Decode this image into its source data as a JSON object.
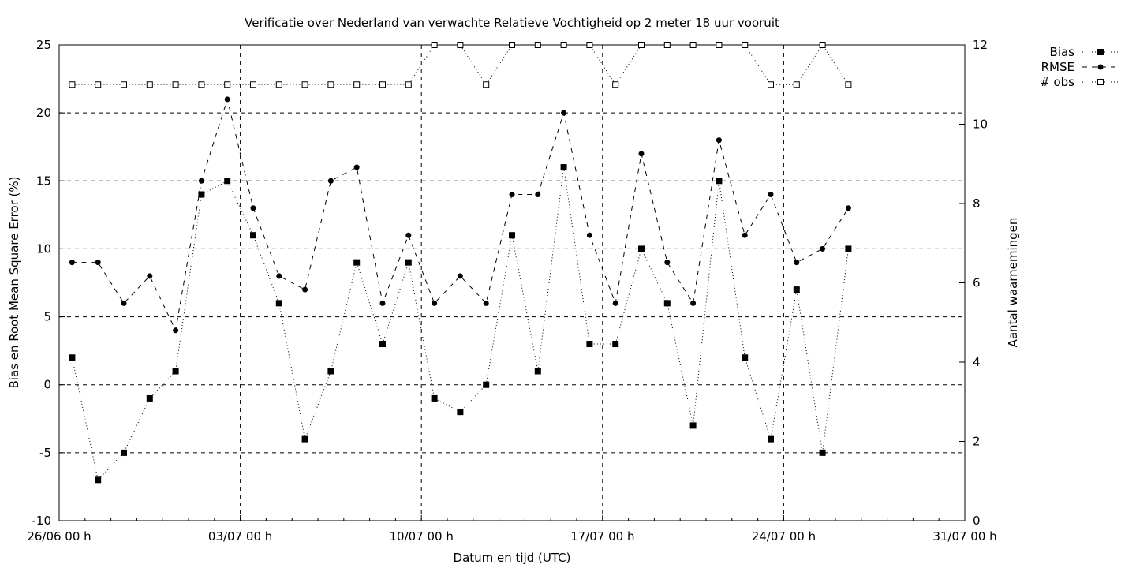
{
  "chart_data": {
    "type": "line",
    "title": "Verificatie over Nederland van verwachte Relatieve Vochtigheid op 2 meter 18 uur vooruit",
    "xlabel": "Datum en tijd (UTC)",
    "ylabel": "Bias en Root Mean Square Error (%)",
    "y2label": "Aantal waarnemingen",
    "x_ticks": [
      "26/06 00 h",
      "03/07 00 h",
      "10/07 00 h",
      "17/07 00 h",
      "24/07 00 h",
      "31/07 00 h"
    ],
    "ylim": [
      -10,
      25
    ],
    "yticks": [
      -10,
      -5,
      0,
      5,
      10,
      15,
      20,
      25
    ],
    "y2lim": [
      0,
      12
    ],
    "y2ticks": [
      0,
      2,
      4,
      6,
      8,
      10,
      12
    ],
    "grid": true,
    "legend_position": "top-right outside",
    "x_days": [
      0.5,
      1.5,
      2.5,
      3.5,
      4.5,
      5.5,
      6.5,
      7.5,
      8.5,
      9.5,
      10.5,
      11.5,
      12.5,
      13.5,
      14.5,
      15.5,
      16.5,
      17.5,
      18.5,
      19.5,
      20.5,
      21.5,
      22.5,
      23.5,
      24.5,
      25.5,
      26.5,
      27.5,
      28.5,
      29.5,
      30.5
    ],
    "series": [
      {
        "name": "Bias",
        "axis": "left",
        "style": "dotted",
        "marker": "filled-square",
        "values": [
          2,
          -7,
          -5,
          -1,
          1,
          14,
          15,
          11,
          6,
          -4,
          1,
          9,
          3,
          9,
          -1,
          -2,
          0,
          11,
          1,
          16,
          3,
          3,
          10,
          6,
          -3,
          15,
          2,
          -4,
          7,
          -5,
          10
        ]
      },
      {
        "name": "RMSE",
        "axis": "left",
        "style": "dashed",
        "marker": "filled-circle",
        "values": [
          9,
          9,
          6,
          8,
          4,
          15,
          21,
          13,
          8,
          7,
          15,
          16,
          6,
          11,
          6,
          8,
          6,
          14,
          14,
          20,
          11,
          6,
          17,
          9,
          6,
          18,
          11,
          14,
          9,
          10,
          13
        ]
      },
      {
        "name": "# obs",
        "axis": "right",
        "style": "dotted",
        "marker": "open-square",
        "values": [
          11,
          11,
          11,
          11,
          11,
          11,
          11,
          11,
          11,
          11,
          11,
          11,
          11,
          11,
          12,
          12,
          11,
          12,
          12,
          12,
          12,
          11,
          12,
          12,
          12,
          12,
          12,
          11,
          11,
          12,
          11
        ]
      }
    ]
  }
}
